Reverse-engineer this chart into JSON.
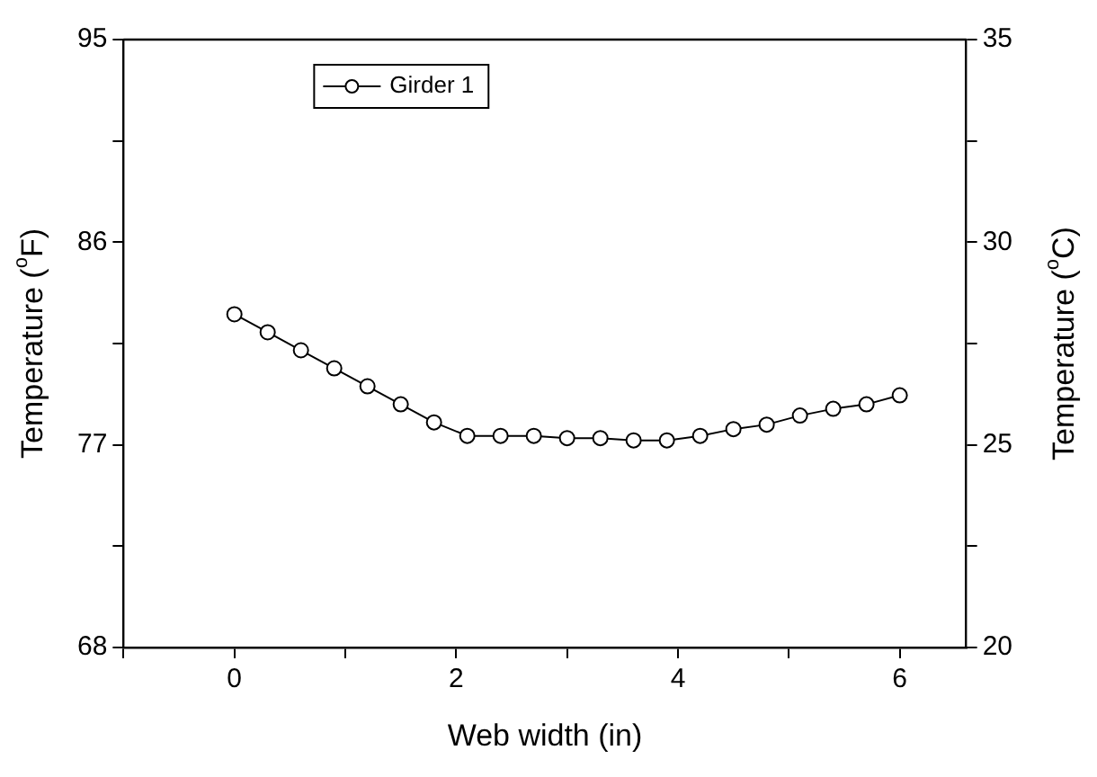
{
  "chart_data": {
    "type": "line",
    "xlabel": "Web width (in)",
    "ylabel": "Temperature ($^{o}$F)",
    "y2label": "Temperature ($^{o}$C)",
    "x": [
      0,
      0.3,
      0.6,
      0.9,
      1.2,
      1.5,
      1.8,
      2.1,
      2.4,
      2.7,
      3.0,
      3.3,
      3.6,
      3.9,
      4.2,
      4.5,
      4.8,
      5.1,
      5.4,
      5.7,
      6.0
    ],
    "series": [
      {
        "name": "Girder 1",
        "color": "#000000",
        "values": [
          82.8,
          82.0,
          81.2,
          80.4,
          79.6,
          78.8,
          78.0,
          77.4,
          77.4,
          77.4,
          77.3,
          77.3,
          77.2,
          77.2,
          77.4,
          77.7,
          77.9,
          78.3,
          78.6,
          78.8,
          79.2
        ]
      }
    ],
    "xlim": [
      -1,
      6.6
    ],
    "xticks": [
      {
        "value": -1,
        "label": null
      },
      0,
      {
        "value": 1,
        "label": null
      },
      2,
      {
        "value": 3,
        "label": null
      },
      4,
      {
        "value": 5,
        "label": null
      },
      6
    ],
    "ylim": [
      68,
      95
    ],
    "yticks": [
      68,
      {
        "value": 72.5,
        "label": null
      },
      77,
      {
        "value": 81.5,
        "label": null
      },
      86,
      {
        "value": 90.5,
        "label": null
      },
      95
    ],
    "y2lim": [
      20,
      35
    ],
    "y2ticks": [
      20,
      {
        "value": 22.5,
        "label": null
      },
      25,
      {
        "value": 27.5,
        "label": null
      },
      30,
      {
        "value": 32.5,
        "label": null
      },
      35
    ],
    "legend": "top left",
    "marker": "circle",
    "line_style": "solid",
    "grid": false
  }
}
